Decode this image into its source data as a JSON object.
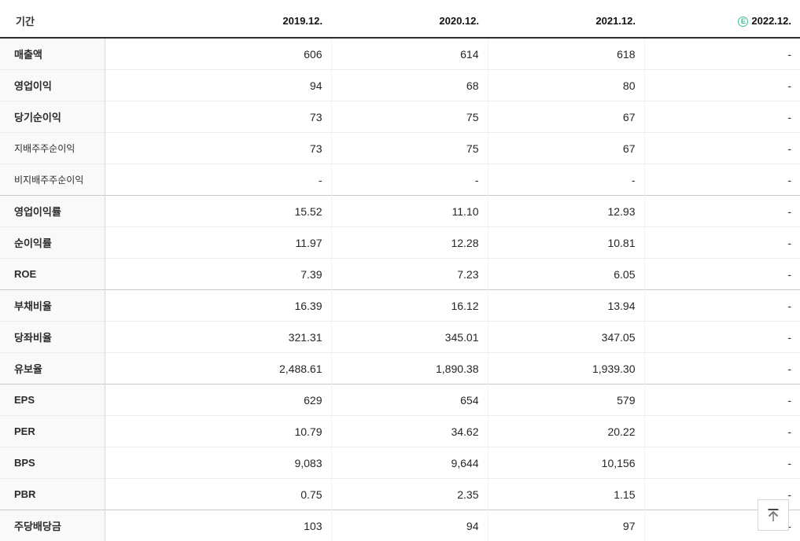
{
  "colors": {
    "estimate_green": "#3ec28f",
    "header_border": "#2b2b2b",
    "group_border": "#c9c9c9",
    "row_border": "#ededed",
    "label_column_bg": "#f9f9f9"
  },
  "table": {
    "header": {
      "period_label": "기간",
      "columns": [
        "2019.12.",
        "2020.12.",
        "2021.12.",
        "2022.12."
      ],
      "estimate_badge": "E"
    },
    "rows": [
      {
        "label": "매출액",
        "style": "main",
        "group_start": false,
        "values": [
          "606",
          "614",
          "618",
          "-"
        ]
      },
      {
        "label": "영업이익",
        "style": "main",
        "group_start": false,
        "values": [
          "94",
          "68",
          "80",
          "-"
        ]
      },
      {
        "label": "당기순이익",
        "style": "main",
        "group_start": false,
        "values": [
          "73",
          "75",
          "67",
          "-"
        ]
      },
      {
        "label": "지배주주순이익",
        "style": "sub",
        "group_start": false,
        "values": [
          "73",
          "75",
          "67",
          "-"
        ]
      },
      {
        "label": "비지배주주순이익",
        "style": "sub",
        "group_start": false,
        "values": [
          "-",
          "-",
          "-",
          "-"
        ]
      },
      {
        "label": "영업이익률",
        "style": "main",
        "group_start": true,
        "values": [
          "15.52",
          "11.10",
          "12.93",
          "-"
        ]
      },
      {
        "label": "순이익률",
        "style": "main",
        "group_start": false,
        "values": [
          "11.97",
          "12.28",
          "10.81",
          "-"
        ]
      },
      {
        "label": "ROE",
        "style": "main",
        "group_start": false,
        "values": [
          "7.39",
          "7.23",
          "6.05",
          "-"
        ]
      },
      {
        "label": "부채비율",
        "style": "main",
        "group_start": true,
        "values": [
          "16.39",
          "16.12",
          "13.94",
          "-"
        ]
      },
      {
        "label": "당좌비율",
        "style": "main",
        "group_start": false,
        "values": [
          "321.31",
          "345.01",
          "347.05",
          "-"
        ]
      },
      {
        "label": "유보율",
        "style": "main",
        "group_start": false,
        "values": [
          "2,488.61",
          "1,890.38",
          "1,939.30",
          "-"
        ]
      },
      {
        "label": "EPS",
        "style": "main",
        "group_start": true,
        "values": [
          "629",
          "654",
          "579",
          "-"
        ]
      },
      {
        "label": "PER",
        "style": "main",
        "group_start": false,
        "values": [
          "10.79",
          "34.62",
          "20.22",
          "-"
        ]
      },
      {
        "label": "BPS",
        "style": "main",
        "group_start": false,
        "values": [
          "9,083",
          "9,644",
          "10,156",
          "-"
        ]
      },
      {
        "label": "PBR",
        "style": "main",
        "group_start": false,
        "values": [
          "0.75",
          "2.35",
          "1.15",
          "-"
        ]
      },
      {
        "label": "주당배당금",
        "style": "main",
        "group_start": true,
        "values": [
          "103",
          "94",
          "97",
          "-"
        ]
      }
    ]
  },
  "scroll_top_button": {
    "icon": "arrow-to-top"
  }
}
